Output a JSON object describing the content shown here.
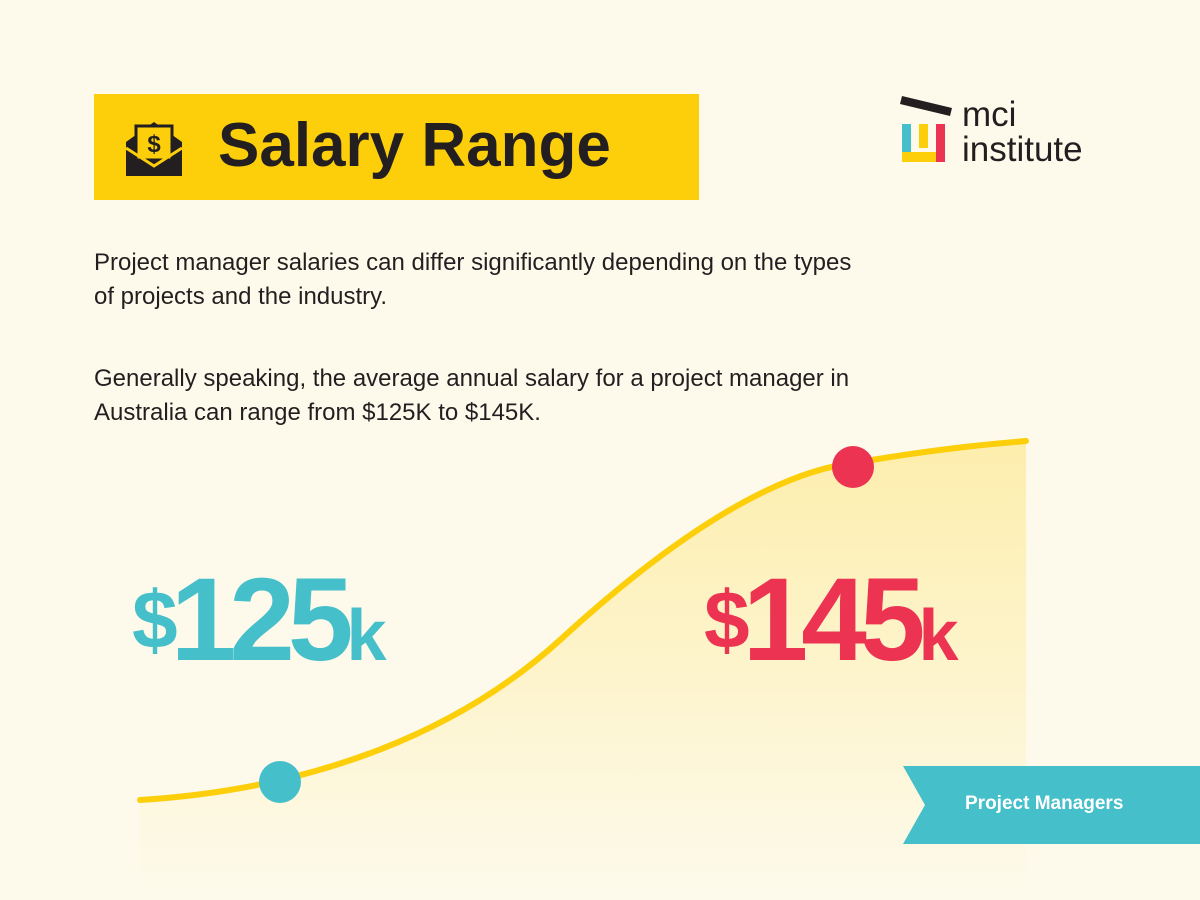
{
  "header": {
    "title": "Salary Range",
    "icon": "money-envelope-icon"
  },
  "logo": {
    "line1": "mci",
    "line2": "institute"
  },
  "paragraphs": [
    "Project manager salaries can differ significantly depending on the types of projects and the industry.",
    "Generally speaking, the average annual salary for a project manager in Australia can range from $125K to $145K."
  ],
  "salary": {
    "low": {
      "currency": "$",
      "amount": "125",
      "suffix": "k"
    },
    "high": {
      "currency": "$",
      "amount": "145",
      "suffix": "k"
    }
  },
  "tag": {
    "label": "Project Managers"
  },
  "colors": {
    "background": "#FDFAEC",
    "accent_yellow": "#FCCF0A",
    "teal": "#45BFC9",
    "red": "#EC3352",
    "text": "#231F20"
  }
}
